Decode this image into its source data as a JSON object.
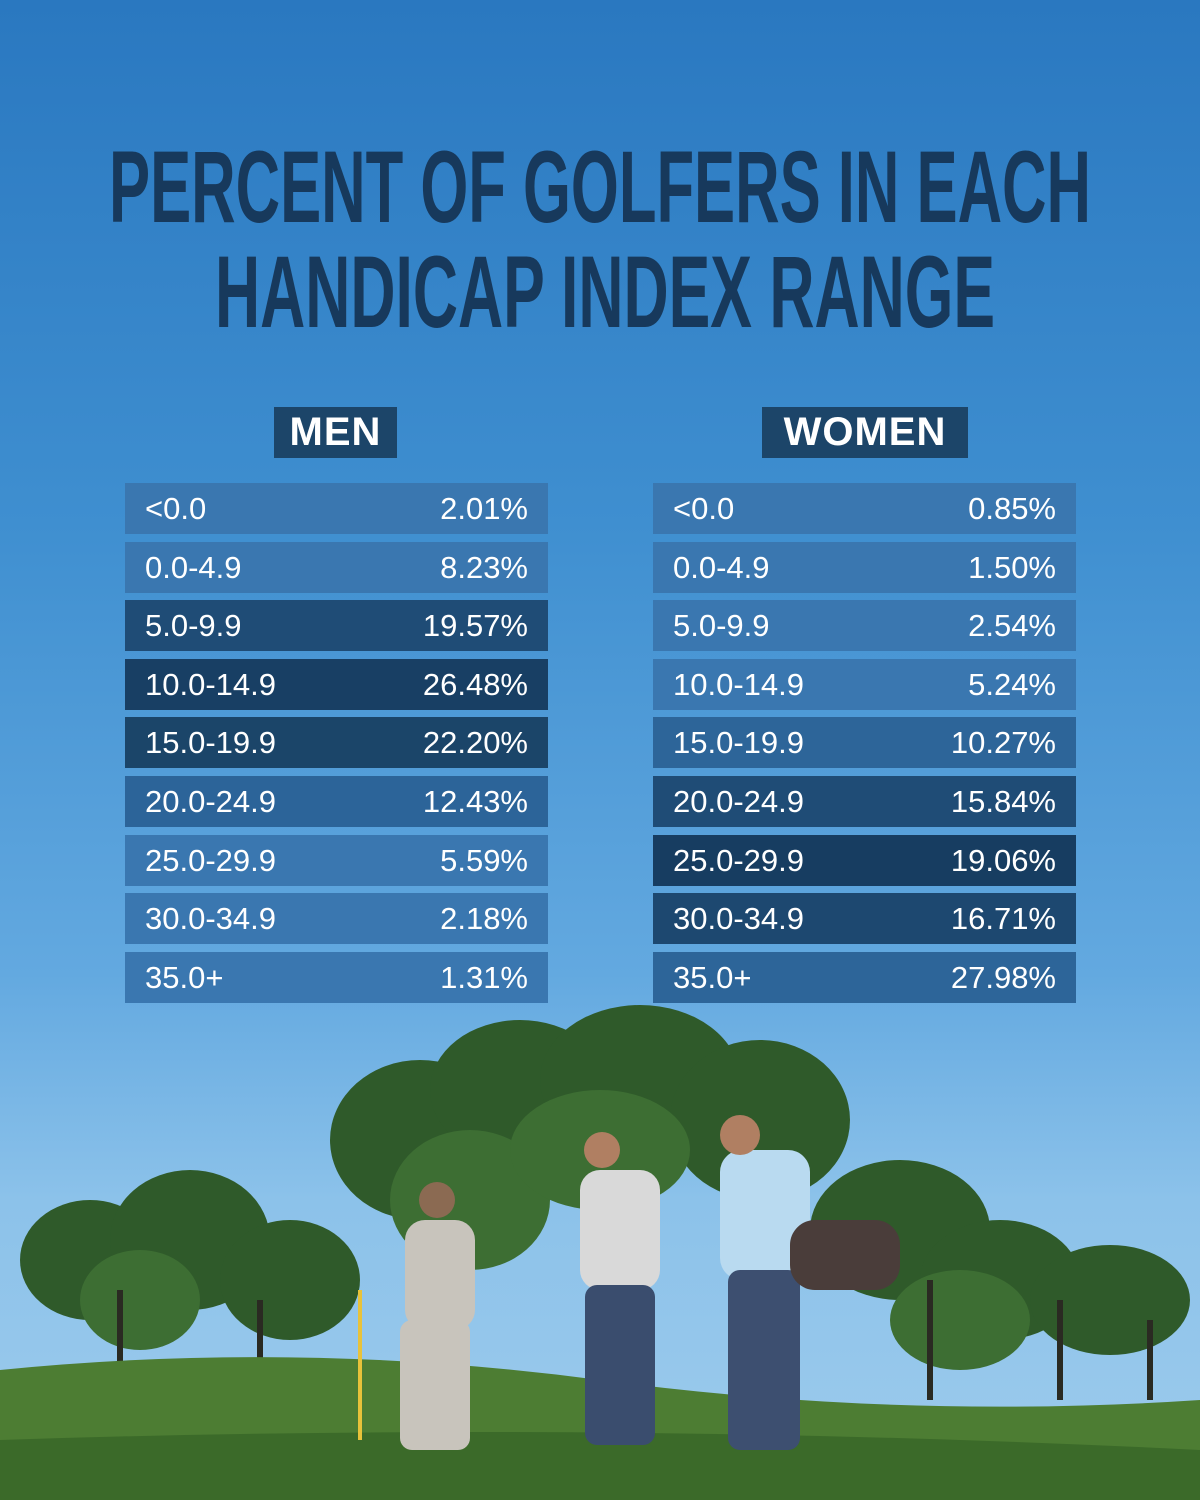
{
  "header": {
    "title": [
      "PERCENT OF GOLFERS IN EACH",
      "HANDICAP INDEX RANGE"
    ]
  },
  "tables": [
    {
      "heading": "MEN",
      "rows": [
        [
          "<0.0",
          "2.01%"
        ],
        [
          "0.0-4.9",
          "8.23%"
        ],
        [
          "5.0-9.9",
          "19.57%"
        ],
        [
          "10.0-14.9",
          "26.48%"
        ],
        [
          "15.0-19.9",
          "22.20%"
        ],
        [
          "20.0-24.9",
          "12.43%"
        ],
        [
          "25.0-29.9",
          "5.59%"
        ],
        [
          "30.0-34.9",
          "2.18%"
        ],
        [
          "35.0+",
          "1.31%"
        ]
      ]
    },
    {
      "heading": "WOMEN",
      "rows": [
        [
          "<0.0",
          "0.85%"
        ],
        [
          "0.0-4.9",
          "1.50%"
        ],
        [
          "5.0-9.9",
          "2.54%"
        ],
        [
          "10.0-14.9",
          "5.24%"
        ],
        [
          "15.0-19.9",
          "10.27%"
        ],
        [
          "20.0-24.9",
          "15.84%"
        ],
        [
          "25.0-29.9",
          "19.06%"
        ],
        [
          "30.0-34.9",
          "16.71%"
        ],
        [
          "35.0+",
          "27.98%"
        ]
      ]
    }
  ]
}
